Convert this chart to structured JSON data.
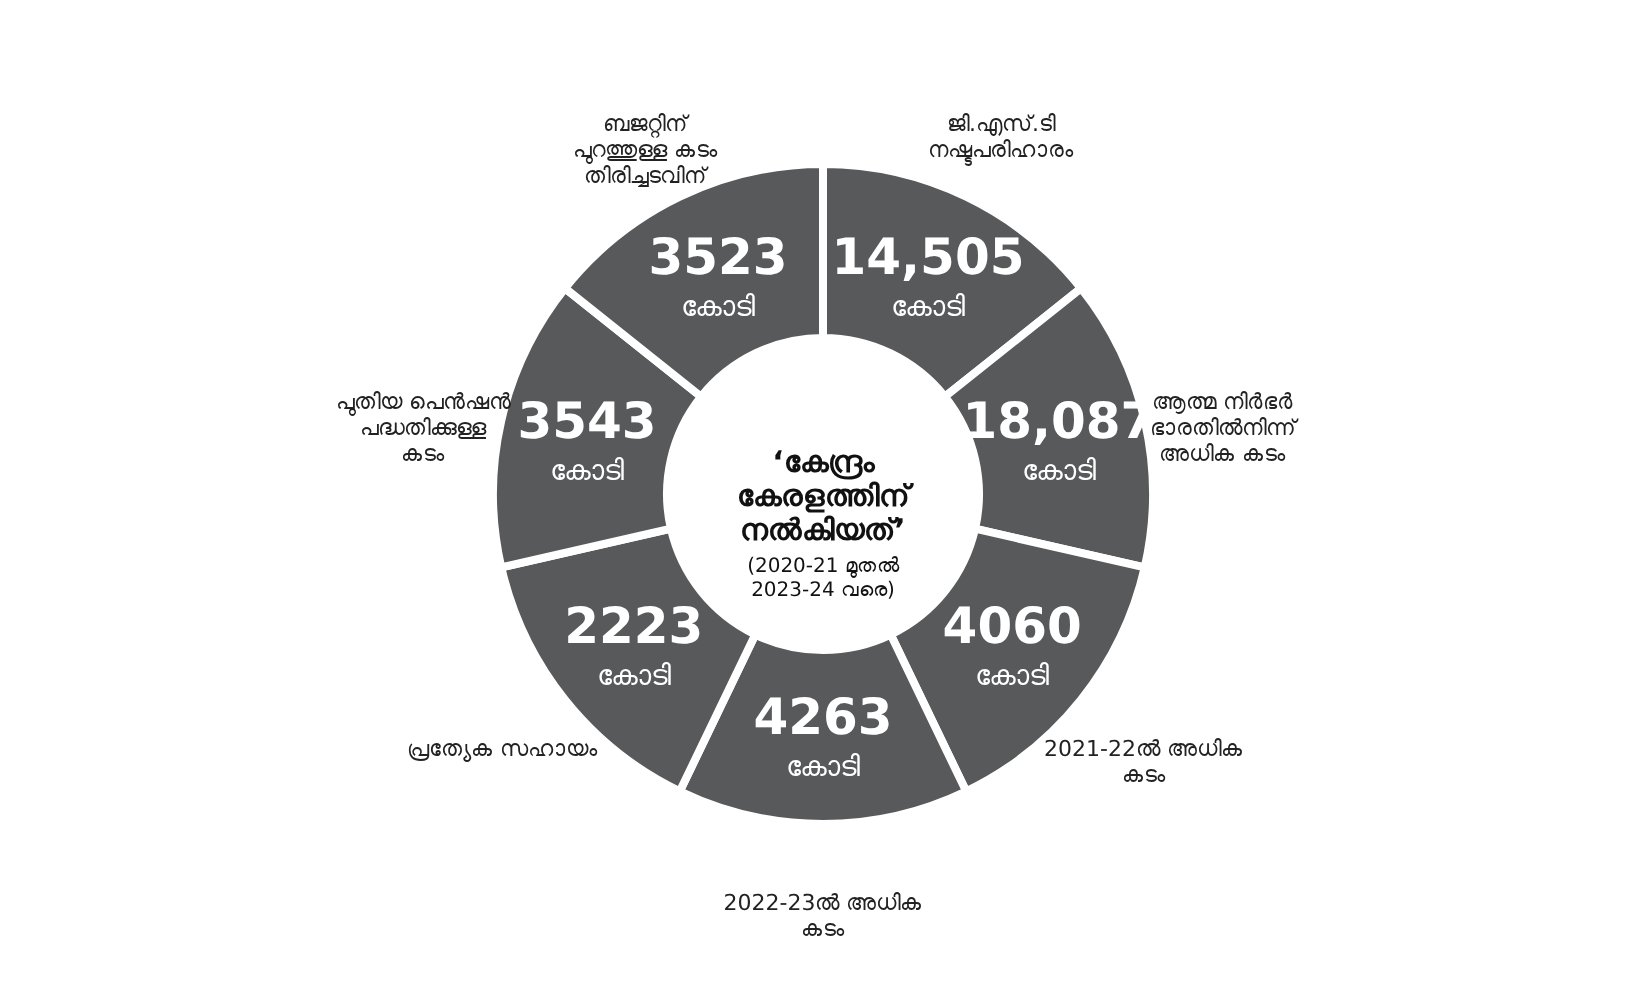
{
  "chart_data": {
    "type": "other",
    "title": "‘കേന്ദ്രം കേരളത്തിന് നൽകിയത്’",
    "subtitle": "(2020-21 മുതൽ 2023-24 വരെ)",
    "categories": [
      "ജി.എസ്.ടി നഷ്ടപരിഹാരം",
      "ആത്മ നിർഭർ ഭാരതിൽനിന്ന് അധിക കടം",
      "2021-22ൽ അധിക കടം",
      "2022-23ൽ അധിക കടം",
      "പ്രത്യേക സഹായം",
      "പുതിയ പെൻഷൻ പദ്ധതിക്കുള്ള കടം",
      "ബജറ്റിന് പുറത്തുള്ള കടം തിരിച്ചടവിന്"
    ],
    "values": [
      14505,
      18087,
      4060,
      4263,
      2223,
      3543,
      3523
    ],
    "value_labels": [
      "14,505",
      "18,087",
      "4060",
      "4263",
      "2223",
      "3543",
      "3523"
    ],
    "annotations": [
      "കോടി"
    ],
    "colors": [
      "#58595b",
      "#58595b",
      "#58595b",
      "#58595b",
      "#58595b",
      "#58595b",
      "#58595b"
    ]
  }
}
